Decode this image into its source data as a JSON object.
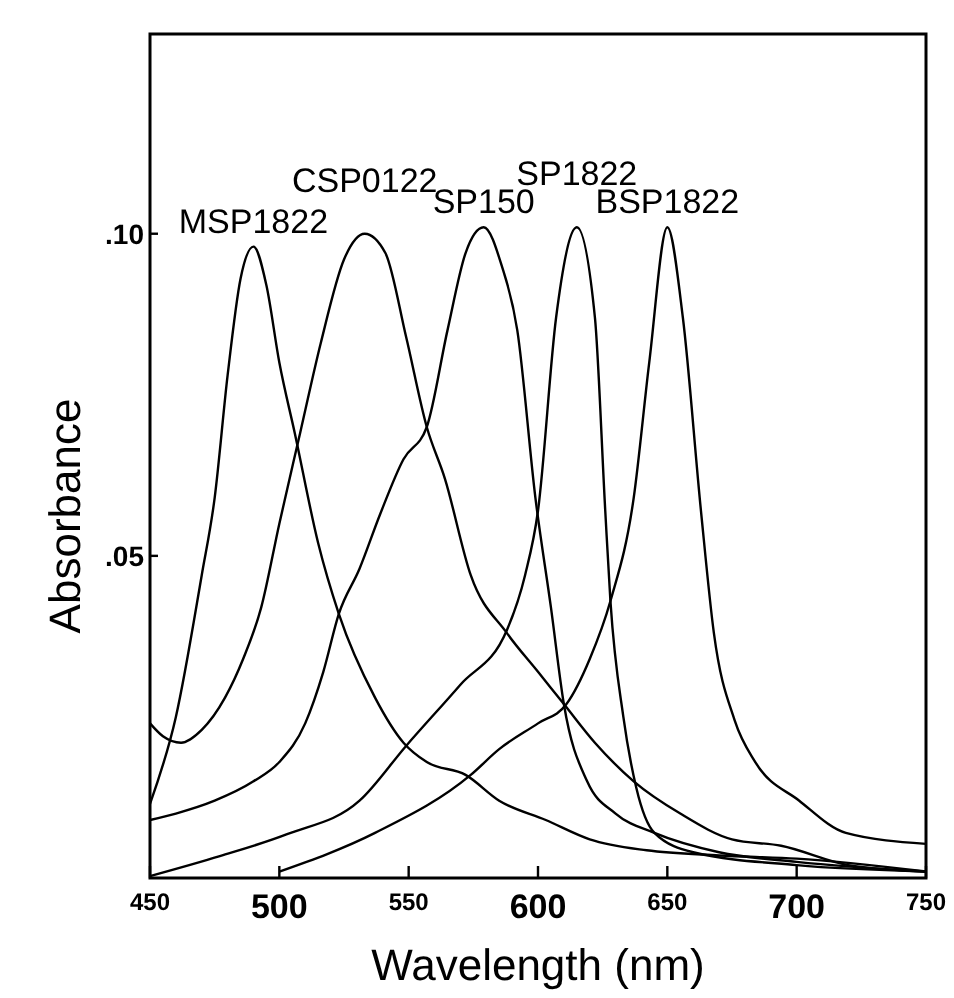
{
  "chart_data": {
    "type": "line",
    "xlabel": "Wavelength (nm)",
    "ylabel": "Absorbance",
    "xlim": [
      450,
      750
    ],
    "xticks": [
      450,
      500,
      550,
      600,
      650,
      700,
      750
    ],
    "ylim": [
      0,
      0.131
    ],
    "yticks": [
      {
        "value": 0.05,
        "label": ".05"
      },
      {
        "value": 0.1,
        "label": ".10"
      }
    ],
    "grid": false,
    "marker": "none",
    "line_style": "solid",
    "series": [
      {
        "name": "MSP1822",
        "color": "#000000",
        "x": [
          450,
          460,
          470,
          475,
          480,
          485,
          490,
          495,
          500,
          506,
          515,
          523,
          537,
          548,
          557,
          572,
          585,
          603,
          620,
          642,
          670,
          700,
          750
        ],
        "values": [
          0.0115,
          0.025,
          0.047,
          0.059,
          0.078,
          0.093,
          0.098,
          0.092,
          0.08,
          0.069,
          0.052,
          0.041,
          0.028,
          0.021,
          0.018,
          0.016,
          0.012,
          0.009,
          0.006,
          0.0043,
          0.0035,
          0.003,
          0.001
        ]
      },
      {
        "name": "CSP0122",
        "color": "#000000",
        "x": [
          450,
          455,
          462,
          470,
          479,
          486,
          493,
          500,
          508,
          516,
          525,
          533,
          541,
          549,
          557,
          564,
          574,
          588,
          600,
          610,
          622,
          637,
          655,
          675,
          694,
          720,
          750
        ],
        "values": [
          0.024,
          0.022,
          0.021,
          0.023,
          0.028,
          0.034,
          0.042,
          0.055,
          0.069,
          0.083,
          0.096,
          0.1,
          0.097,
          0.084,
          0.07,
          0.062,
          0.047,
          0.038,
          0.032,
          0.027,
          0.021,
          0.015,
          0.01,
          0.006,
          0.005,
          0.002,
          0.001
        ]
      },
      {
        "name": "SP150",
        "color": "#000000",
        "x": [
          450,
          460,
          475,
          490,
          500,
          510,
          517,
          523,
          531,
          539,
          548,
          557,
          565,
          572,
          579,
          586,
          592,
          599,
          605,
          610,
          619,
          630,
          645,
          670,
          700,
          750
        ],
        "values": [
          0.009,
          0.01,
          0.012,
          0.015,
          0.018,
          0.024,
          0.032,
          0.041,
          0.048,
          0.0565,
          0.065,
          0.07,
          0.085,
          0.097,
          0.101,
          0.095,
          0.085,
          0.059,
          0.042,
          0.027,
          0.015,
          0.01,
          0.007,
          0.004,
          0.0025,
          0.001
        ]
      },
      {
        "name": "SP1822",
        "color": "#000000",
        "x": [
          450,
          477,
          503,
          531,
          549,
          570,
          588,
          595,
          600,
          607,
          615,
          622,
          626,
          628,
          633,
          638,
          645,
          660,
          700,
          750
        ],
        "values": [
          0.0003,
          0.0034,
          0.0068,
          0.012,
          0.0205,
          0.03,
          0.0385,
          0.047,
          0.057,
          0.087,
          0.101,
          0.087,
          0.057,
          0.043,
          0.025,
          0.014,
          0.007,
          0.004,
          0.002,
          0.001
        ]
      },
      {
        "name": "BSP1822",
        "color": "#000000",
        "x": [
          500,
          537,
          574,
          585,
          600,
          611,
          620,
          628,
          637,
          643,
          650,
          656,
          663,
          668,
          676,
          684,
          701,
          719,
          750
        ],
        "values": [
          0.001,
          0.007,
          0.016,
          0.02,
          0.024,
          0.027,
          0.034,
          0.043,
          0.059,
          0.08,
          0.101,
          0.087,
          0.057,
          0.038,
          0.0245,
          0.018,
          0.012,
          0.007,
          0.0053
        ]
      }
    ]
  }
}
